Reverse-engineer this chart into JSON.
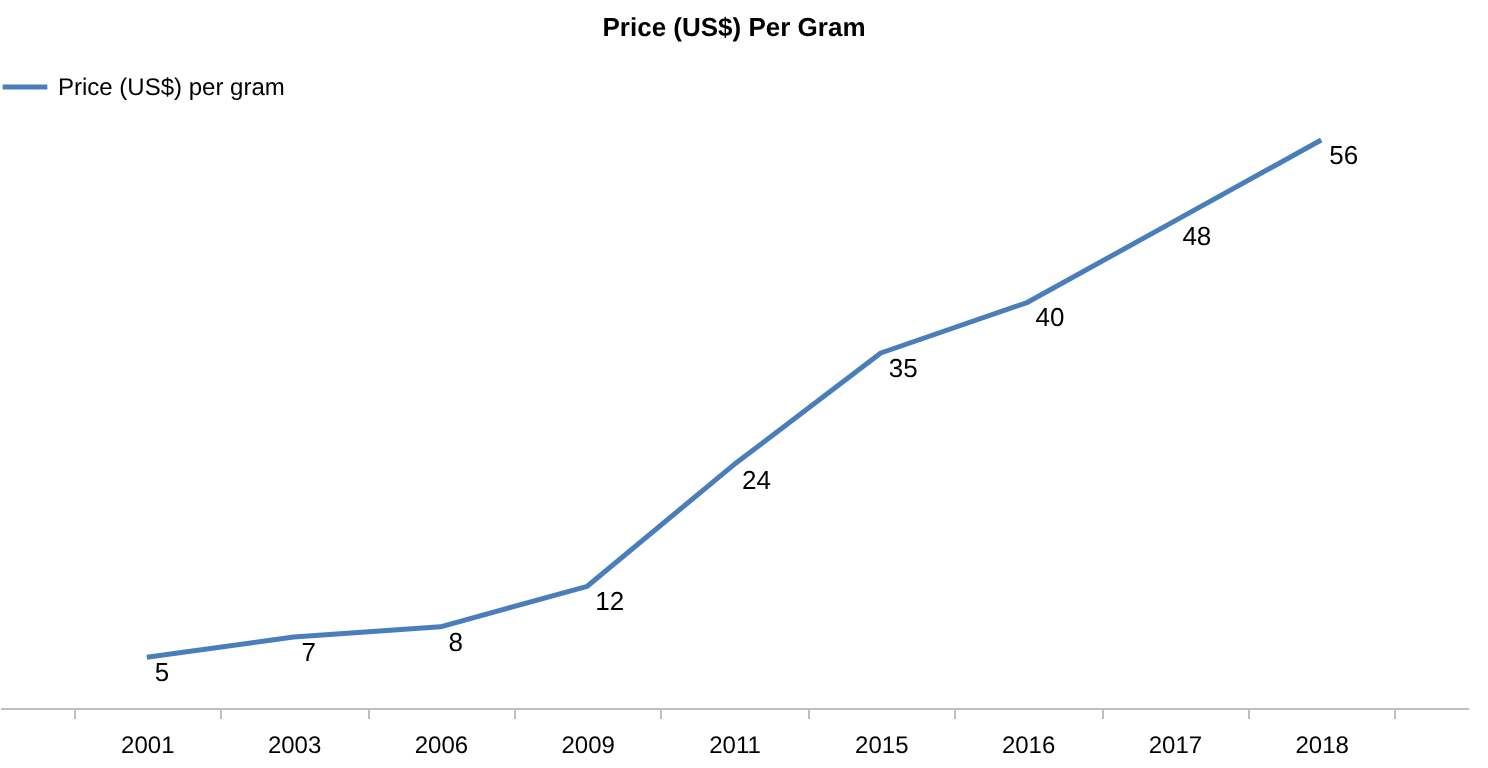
{
  "chart_data": {
    "type": "line",
    "title": "Price (US$) Per Gram",
    "categories": [
      "2001",
      "2003",
      "2006",
      "2009",
      "2011",
      "2015",
      "2016",
      "2017",
      "2018"
    ],
    "series": [
      {
        "name": "Price (US$) per gram",
        "color": "#4a7ebb",
        "values": [
          5,
          7,
          8,
          12,
          24,
          35,
          40,
          48,
          56
        ]
      }
    ],
    "data_labels": true,
    "legend": "top",
    "grid": false,
    "marker": "none",
    "line_style": "solid"
  }
}
